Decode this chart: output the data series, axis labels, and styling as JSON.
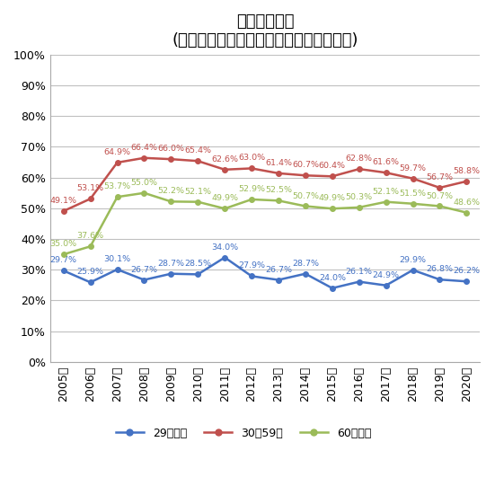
{
  "title_line1": "乗用車普及率",
  "title_line2": "(総世帯、新車で購入、世帯主年齢階層別)",
  "years": [
    "2005年",
    "2006年",
    "2007年",
    "2008年",
    "2009年",
    "2010年",
    "2011年",
    "2012年",
    "2013年",
    "2014年",
    "2015年",
    "2016年",
    "2017年",
    "2018年",
    "2019年",
    "2020年"
  ],
  "series": [
    {
      "name": "29歳以下",
      "color": "#4472C4",
      "values": [
        29.7,
        25.9,
        30.1,
        26.7,
        28.7,
        28.5,
        34.0,
        27.9,
        26.7,
        28.7,
        24.0,
        26.1,
        24.9,
        29.9,
        26.8,
        26.2
      ]
    },
    {
      "name": "30〜59歳",
      "color": "#C0504D",
      "values": [
        49.1,
        53.1,
        64.9,
        66.4,
        66.0,
        65.4,
        62.6,
        63.0,
        61.4,
        60.7,
        60.4,
        62.8,
        61.6,
        59.7,
        56.7,
        58.8
      ]
    },
    {
      "name": "60歳以上",
      "color": "#9BBB59",
      "values": [
        35.0,
        37.6,
        53.7,
        55.0,
        52.2,
        52.1,
        49.9,
        52.9,
        52.5,
        50.7,
        49.9,
        50.3,
        52.1,
        51.5,
        50.7,
        48.6
      ]
    }
  ],
  "ylim": [
    0,
    100
  ],
  "yticks": [
    0,
    10,
    20,
    30,
    40,
    50,
    60,
    70,
    80,
    90,
    100
  ],
  "ytick_labels": [
    "0%",
    "10%",
    "20%",
    "30%",
    "40%",
    "50%",
    "60%",
    "70%",
    "80%",
    "90%",
    "100%"
  ],
  "background_color": "#ffffff",
  "grid_color": "#c0c0c0",
  "label_fontsize": 6.8,
  "legend_fontsize": 9,
  "tick_fontsize": 9,
  "title_fontsize1": 13,
  "title_fontsize2": 11
}
